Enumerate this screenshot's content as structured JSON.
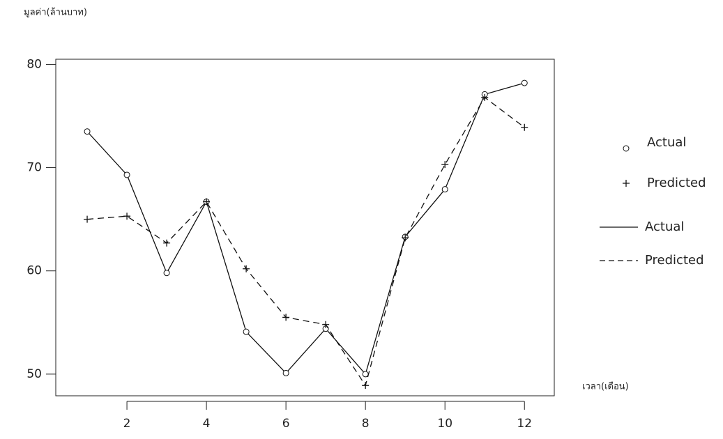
{
  "chart_data": {
    "type": "line",
    "y_label": "มูลค่า(ล้านบาท)",
    "x_label": "เวลา(เดือน)",
    "x": [
      1,
      2,
      3,
      4,
      5,
      6,
      7,
      8,
      9,
      10,
      11,
      12
    ],
    "series": [
      {
        "name": "Actual",
        "color": "#111111",
        "marker": "circle",
        "dash": false,
        "values": [
          73.5,
          69.3,
          59.8,
          66.7,
          54.1,
          50.1,
          54.4,
          50.0,
          63.3,
          67.9,
          77.1,
          78.2
        ]
      },
      {
        "name": "Predicted",
        "color": "#111111",
        "marker": "plus",
        "dash": true,
        "values": [
          65.0,
          65.3,
          62.7,
          66.7,
          60.2,
          55.5,
          54.8,
          48.9,
          63.2,
          70.3,
          76.8,
          73.9
        ]
      }
    ],
    "xlim": [
      0.21,
      12.75
    ],
    "ylim": [
      47.9,
      80.5
    ],
    "xticks": [
      2,
      4,
      6,
      8,
      10,
      12
    ],
    "yticks": [
      50,
      60,
      70,
      80
    ]
  }
}
